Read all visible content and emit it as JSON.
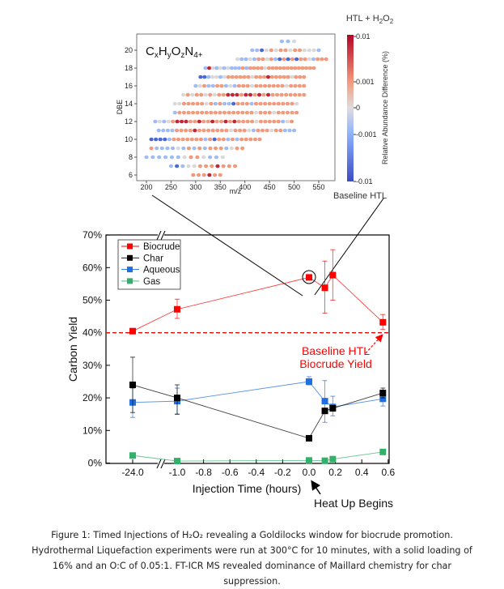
{
  "chart_data": [
    {
      "type": "line",
      "xlabel": "Injection Time (hours)",
      "ylabel": "Carbon Yield",
      "ylim": [
        0,
        70
      ],
      "y_ticks": [
        "0%",
        "10%",
        "20%",
        "30%",
        "40%",
        "50%",
        "60%",
        "70%"
      ],
      "x_ticks": [
        "-24.0",
        "-1.0",
        "-0.8",
        "-0.6",
        "-0.4",
        "-0.2",
        "0.0",
        "0.2",
        "0.4",
        "0.6"
      ],
      "x_axis_break": true,
      "grid": false,
      "legend": "top-left",
      "x": [
        -24.0,
        -1.0,
        0.0,
        0.12,
        0.18,
        0.56
      ],
      "series": [
        {
          "name": "Biocrude",
          "color": "#ff0000",
          "values": [
            40.5,
            47.2,
            57.0,
            53.8,
            57.7,
            43.2
          ],
          "err_low": [
            40.5,
            44.4,
            57.0,
            46.0,
            50.0,
            41.0
          ],
          "err_high": [
            40.5,
            50.3,
            57.0,
            62.0,
            65.5,
            45.6
          ]
        },
        {
          "name": "Char",
          "color": "#000000",
          "values": [
            24.0,
            20.0,
            7.6,
            16.0,
            16.8,
            21.5
          ],
          "err_low": [
            15.5,
            15.0,
            7.6,
            16.0,
            16.0,
            20.0
          ],
          "err_high": [
            32.5,
            24.0,
            7.6,
            16.0,
            17.5,
            23.0
          ]
        },
        {
          "name": "Aqueous",
          "color": "#1f6fe0",
          "values": [
            18.6,
            19.0,
            25.0,
            19.0,
            17.2,
            19.7
          ],
          "err_low": [
            14.0,
            15.0,
            24.0,
            12.5,
            14.5,
            17.5
          ],
          "err_high": [
            23.0,
            23.0,
            26.5,
            25.3,
            20.5,
            22.0
          ]
        },
        {
          "name": "Gas",
          "color": "#33b06a",
          "values": [
            2.3,
            0.6,
            0.8,
            0.7,
            1.2,
            3.4
          ],
          "err_low": [
            1.8,
            0.4,
            0.6,
            0.5,
            0.9,
            2.8
          ],
          "err_high": [
            2.8,
            0.8,
            1.0,
            0.9,
            1.5,
            4.0
          ]
        }
      ],
      "reference_line": {
        "value": 40,
        "color": "#ff0000",
        "label_line1": "Baseline HTL",
        "label_line2": "Biocrude Yield"
      },
      "annotation": "Heat Up Begins"
    },
    {
      "type": "scatter",
      "title": "CxHyOzN4+",
      "xlabel": "m/z",
      "ylabel": "DBE",
      "xlim": [
        180,
        580
      ],
      "ylim": [
        5.3,
        21.7
      ],
      "x_ticks": [
        "200",
        "250",
        "300",
        "350",
        "400",
        "450",
        "500",
        "550"
      ],
      "y_ticks": [
        "6",
        "8",
        "10",
        "12",
        "14",
        "16",
        "18",
        "20"
      ],
      "colorbar": {
        "label": "Relative Abundance Difference (%)",
        "ticks": [
          "0.01",
          "0.001",
          "0",
          "-0.001",
          "-0.01"
        ],
        "top_label": "HTL + H2O2",
        "bottom_label": "Baseline HTL",
        "colors": [
          "#b40426",
          "#f49a7b",
          "#dddddd",
          "#8db0fe",
          "#3b4cc0"
        ]
      },
      "value_key": {
        "R": 0.01,
        "r": 0.001,
        "g": 0,
        "b": -0.001,
        "B": -0.01
      },
      "rows": [
        {
          "dbe": 21,
          "mz_start": 475,
          "mz_end": 500,
          "pattern": "bbg"
        },
        {
          "dbe": 20,
          "mz_start": 415,
          "mz_end": 550,
          "pattern": "bbBgrgrrgrrgggb"
        },
        {
          "dbe": 19,
          "mz_start": 385,
          "mz_end": 565,
          "pattern": "gbbgbrrgrbBrBrBrrgbrrr"
        },
        {
          "dbe": 18,
          "mz_start": 320,
          "mz_end": 540,
          "pattern": "bRgbgbgbbbrbrrrrgrrrrrrrrrrrrr"
        },
        {
          "dbe": 17,
          "mz_start": 310,
          "mz_end": 520,
          "pattern": "BBbggbgrrrrrrgrrrRrrrrrgrrr"
        },
        {
          "dbe": 16,
          "mz_start": 300,
          "mz_end": 520,
          "pattern": "bgrbbrrbgbrrrgrrrrrrrgrrrr"
        },
        {
          "dbe": 15,
          "mz_start": 275,
          "mz_end": 520,
          "pattern": "grgrrgrgrrRRRrRRrRrRrrrrrrrr"
        },
        {
          "dbe": 14,
          "mz_start": 258,
          "mz_end": 505,
          "pattern": "ggrrrrrgrbrbbBrrrbrrrrrrrrrg"
        },
        {
          "dbe": 13,
          "mz_start": 258,
          "mz_end": 505,
          "pattern": "brrrrrrrrrrrrrrrrrgrrrgrrrrr"
        },
        {
          "dbe": 12,
          "mz_start": 218,
          "mz_end": 495,
          "pattern": "bgbgrRRRrrRrrRrrRrRrrrrgrrrrrbgr"
        },
        {
          "dbe": 11,
          "mz_start": 225,
          "mz_end": 500,
          "pattern": "bbbbrrrrRrrrrrrrgrrrgbrrrgrrbbb"
        },
        {
          "dbe": 10,
          "mz_start": 210,
          "mz_end": 430,
          "pattern": "BBBBbrrrrrrrbrBrrbrbrrrrr"
        },
        {
          "dbe": 9,
          "mz_start": 210,
          "mz_end": 395,
          "pattern": "rbbbbgbrbrbrrrbgrr"
        },
        {
          "dbe": 8,
          "mz_start": 200,
          "mz_end": 355,
          "pattern": "bbbbbbgrrgbbg"
        },
        {
          "dbe": 7,
          "mz_start": 250,
          "mz_end": 380,
          "pattern": "bBbggrrrRrrr"
        },
        {
          "dbe": 6,
          "mz_start": 295,
          "mz_end": 350,
          "pattern": "rrrRrr"
        }
      ]
    }
  ],
  "caption": {
    "line1": "Figure 1: Timed Injections of H₂O₂ revealing a Goldilocks window for biocrude promotion.",
    "line2": "Hydrothermal Liquefaction experiments were run at 300°C  for 10 minutes, with a solid loading of",
    "line3": "16% and an O:C of 0.05:1. FT-ICR MS revealed dominance of Maillard chemistry for char",
    "line4": "suppression."
  }
}
